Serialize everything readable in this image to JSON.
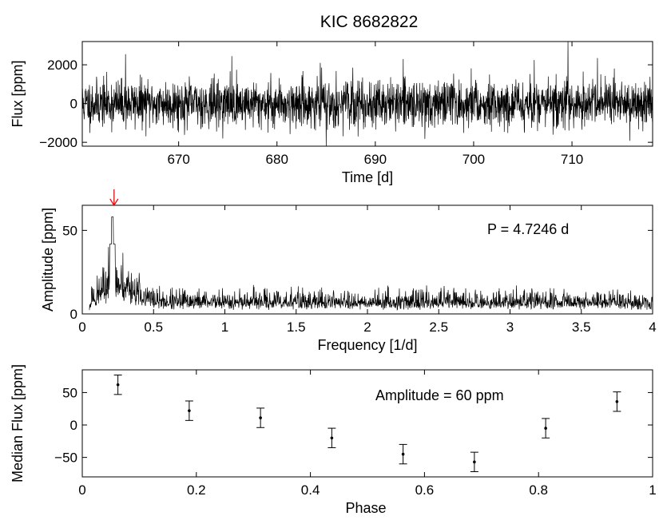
{
  "title": "KIC 8682822",
  "chart_data": [
    {
      "type": "line",
      "name": "light-curve",
      "xlabel": "Time [d]",
      "ylabel": "Flux [ppm]",
      "xlim": [
        660.2,
        718.2
      ],
      "ylim": [
        -2200,
        3200
      ],
      "xticks": [
        670,
        680,
        690,
        700,
        710
      ],
      "yticks": [
        -2000,
        0,
        2000
      ],
      "ytick_labels": [
        "−2000",
        "0",
        "2000"
      ],
      "noise_sigma": 600,
      "spikes": [
        [
          664.6,
          2550
        ],
        [
          675.4,
          2450
        ],
        [
          685.0,
          -2200
        ],
        [
          709.6,
          3200
        ],
        [
          712.6,
          2350
        ],
        [
          684.4,
          2100
        ]
      ],
      "samples": 2400,
      "seed": 11
    },
    {
      "type": "line",
      "name": "periodogram",
      "xlabel": "Frequency [1/d]",
      "ylabel": "Amplitude [ppm]",
      "xlim": [
        0,
        4
      ],
      "ylim": [
        0,
        65
      ],
      "xticks": [
        0,
        0.5,
        1,
        1.5,
        2,
        2.5,
        3,
        3.5,
        4
      ],
      "xtick_labels": [
        "0",
        "0.5",
        "1",
        "1.5",
        "2",
        "2.5",
        "3",
        "3.5",
        "4"
      ],
      "yticks": [
        0,
        50
      ],
      "peak_frequency": 0.2117,
      "peak_amplitude": 58,
      "baseline": 9,
      "fmin": 0.05,
      "samples": 1800,
      "seed": 23,
      "annotation": "P = 4.7246 d"
    },
    {
      "type": "scatter",
      "name": "phase-folded",
      "xlabel": "Phase",
      "ylabel": "Median Flux [ppm]",
      "xlim": [
        0,
        1
      ],
      "ylim": [
        -80,
        85
      ],
      "xticks": [
        0,
        0.2,
        0.4,
        0.6,
        0.8,
        1
      ],
      "xtick_labels": [
        "0",
        "0.2",
        "0.4",
        "0.6",
        "0.8",
        "1"
      ],
      "yticks": [
        -50,
        0,
        50
      ],
      "ytick_labels": [
        "−50",
        "0",
        "50"
      ],
      "x": [
        0.0625,
        0.1875,
        0.3125,
        0.4375,
        0.5625,
        0.6875,
        0.8125,
        0.9375
      ],
      "y": [
        62,
        22,
        11,
        -20,
        -45,
        -57,
        -5,
        36
      ],
      "yerr": [
        15,
        15,
        15,
        15,
        15,
        15,
        15,
        15
      ],
      "annotation": "Amplitude = 60 ppm"
    }
  ]
}
